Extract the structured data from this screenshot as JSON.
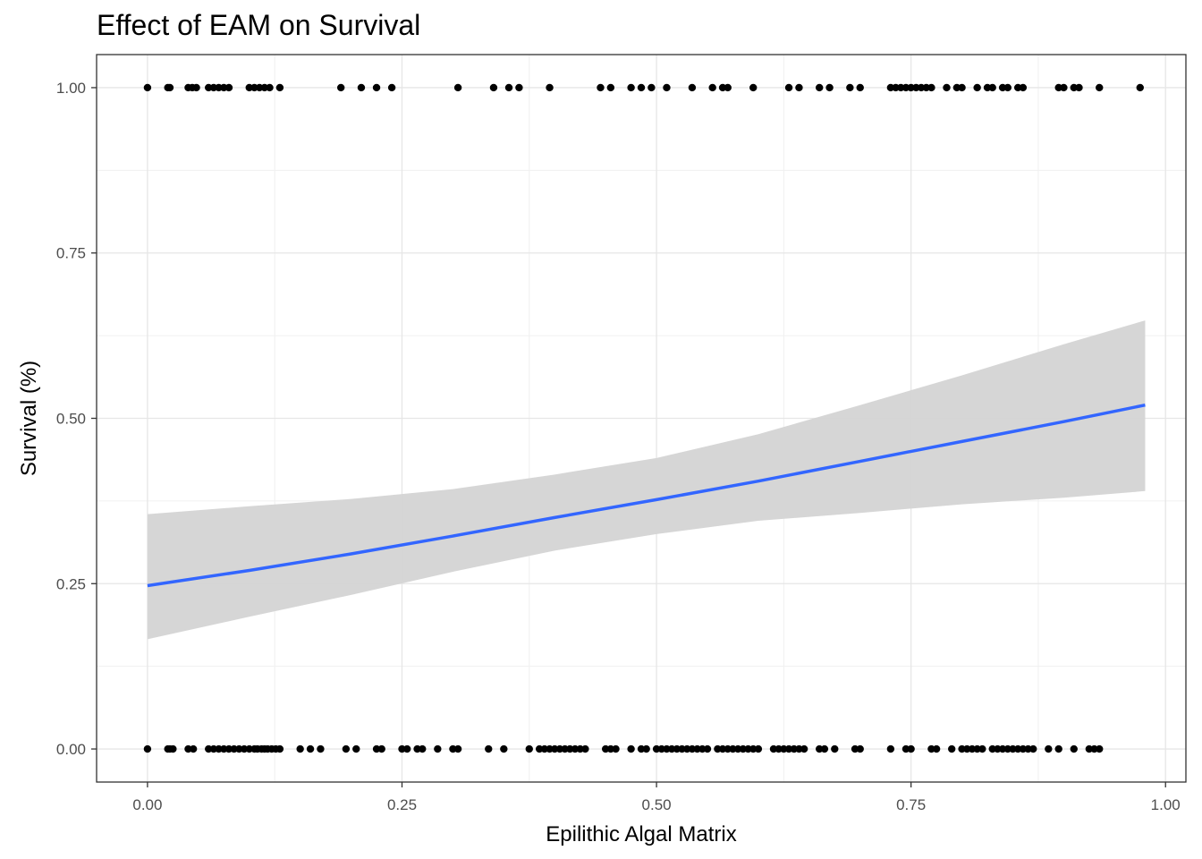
{
  "chart_data": {
    "type": "scatter",
    "title": "Effect of EAM on Survival",
    "xlabel": "Epilithic Algal Matrix",
    "ylabel": "Survival (%)",
    "xlim": [
      -0.05,
      1.02
    ],
    "ylim": [
      -0.05,
      1.05
    ],
    "x_ticks": [
      "0.00",
      "0.25",
      "0.50",
      "0.75",
      "1.00"
    ],
    "y_ticks": [
      "0.00",
      "0.25",
      "0.50",
      "0.75",
      "1.00"
    ],
    "grid": true,
    "legend": "none",
    "series": [
      {
        "type": "scatter",
        "color": "#000000",
        "points_y1_x": [
          0.0,
          0.02,
          0.022,
          0.04,
          0.044,
          0.048,
          0.06,
          0.065,
          0.07,
          0.075,
          0.08,
          0.1,
          0.105,
          0.11,
          0.115,
          0.12,
          0.13,
          0.19,
          0.21,
          0.225,
          0.24,
          0.305,
          0.34,
          0.355,
          0.365,
          0.395,
          0.445,
          0.455,
          0.475,
          0.485,
          0.495,
          0.51,
          0.535,
          0.555,
          0.565,
          0.57,
          0.595,
          0.63,
          0.64,
          0.66,
          0.67,
          0.69,
          0.7,
          0.73,
          0.735,
          0.74,
          0.745,
          0.75,
          0.755,
          0.76,
          0.765,
          0.77,
          0.785,
          0.795,
          0.8,
          0.815,
          0.825,
          0.83,
          0.84,
          0.845,
          0.855,
          0.86,
          0.895,
          0.9,
          0.91,
          0.915,
          0.935,
          0.975
        ],
        "points_y0_x": [
          0.0,
          0.02,
          0.022,
          0.025,
          0.04,
          0.045,
          0.06,
          0.065,
          0.07,
          0.075,
          0.08,
          0.085,
          0.09,
          0.095,
          0.1,
          0.105,
          0.108,
          0.112,
          0.115,
          0.118,
          0.122,
          0.126,
          0.13,
          0.15,
          0.16,
          0.17,
          0.195,
          0.205,
          0.225,
          0.23,
          0.25,
          0.255,
          0.265,
          0.27,
          0.285,
          0.3,
          0.305,
          0.335,
          0.35,
          0.375,
          0.385,
          0.39,
          0.395,
          0.4,
          0.405,
          0.41,
          0.415,
          0.42,
          0.425,
          0.43,
          0.45,
          0.455,
          0.46,
          0.475,
          0.485,
          0.49,
          0.5,
          0.505,
          0.51,
          0.515,
          0.52,
          0.525,
          0.53,
          0.535,
          0.54,
          0.545,
          0.55,
          0.56,
          0.565,
          0.57,
          0.575,
          0.58,
          0.585,
          0.59,
          0.595,
          0.6,
          0.615,
          0.62,
          0.625,
          0.63,
          0.635,
          0.64,
          0.645,
          0.66,
          0.665,
          0.675,
          0.695,
          0.7,
          0.73,
          0.745,
          0.75,
          0.77,
          0.775,
          0.79,
          0.8,
          0.805,
          0.81,
          0.815,
          0.82,
          0.83,
          0.835,
          0.84,
          0.845,
          0.85,
          0.855,
          0.86,
          0.865,
          0.87,
          0.885,
          0.895,
          0.91,
          0.925,
          0.93,
          0.935
        ]
      },
      {
        "type": "line",
        "color": "#3366FF",
        "x": [
          0.0,
          0.1,
          0.2,
          0.3,
          0.4,
          0.5,
          0.6,
          0.7,
          0.8,
          0.9,
          0.98
        ],
        "y": [
          0.247,
          0.27,
          0.295,
          0.322,
          0.35,
          0.377,
          0.405,
          0.435,
          0.465,
          0.495,
          0.52
        ]
      },
      {
        "type": "ribbon",
        "color": "#d4d4d4",
        "x": [
          0.0,
          0.1,
          0.2,
          0.3,
          0.4,
          0.5,
          0.6,
          0.7,
          0.8,
          0.9,
          0.98
        ],
        "upper": [
          0.355,
          0.367,
          0.378,
          0.393,
          0.415,
          0.44,
          0.476,
          0.52,
          0.565,
          0.612,
          0.648
        ],
        "lower": [
          0.166,
          0.2,
          0.233,
          0.268,
          0.3,
          0.325,
          0.345,
          0.357,
          0.37,
          0.38,
          0.39
        ]
      }
    ]
  }
}
